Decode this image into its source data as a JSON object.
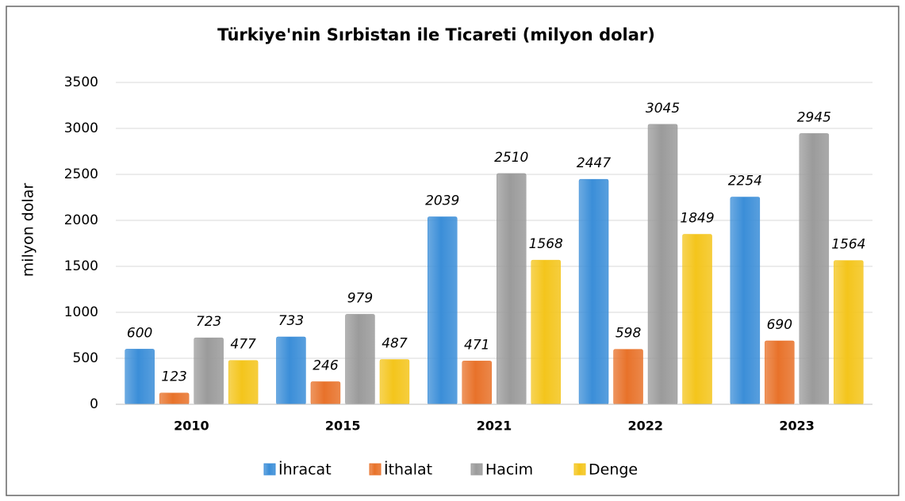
{
  "chart_data": {
    "type": "bar",
    "title": "Türkiye'nin Sırbistan ile Ticareti (milyon dolar)",
    "y_label": "milyon dolar",
    "categories": [
      "2010",
      "2015",
      "2021",
      "2022",
      "2023"
    ],
    "series": [
      {
        "name": "İhracat",
        "color": "#3b8ed8",
        "values": [
          600,
          733,
          2039,
          2447,
          2254
        ]
      },
      {
        "name": "İthalat",
        "color": "#e8722a",
        "values": [
          123,
          246,
          471,
          598,
          690
        ]
      },
      {
        "name": "Hacim",
        "color": "#9b9b9b",
        "values": [
          723,
          979,
          2510,
          3045,
          2945
        ]
      },
      {
        "name": "Denge",
        "color": "#f4c51c",
        "values": [
          477,
          487,
          1568,
          1849,
          1564
        ]
      }
    ],
    "ylim": [
      0,
      3500
    ],
    "yticks": [
      0,
      500,
      1000,
      1500,
      2000,
      2500,
      3000,
      3500
    ],
    "grid": true,
    "legend": "bottom"
  }
}
